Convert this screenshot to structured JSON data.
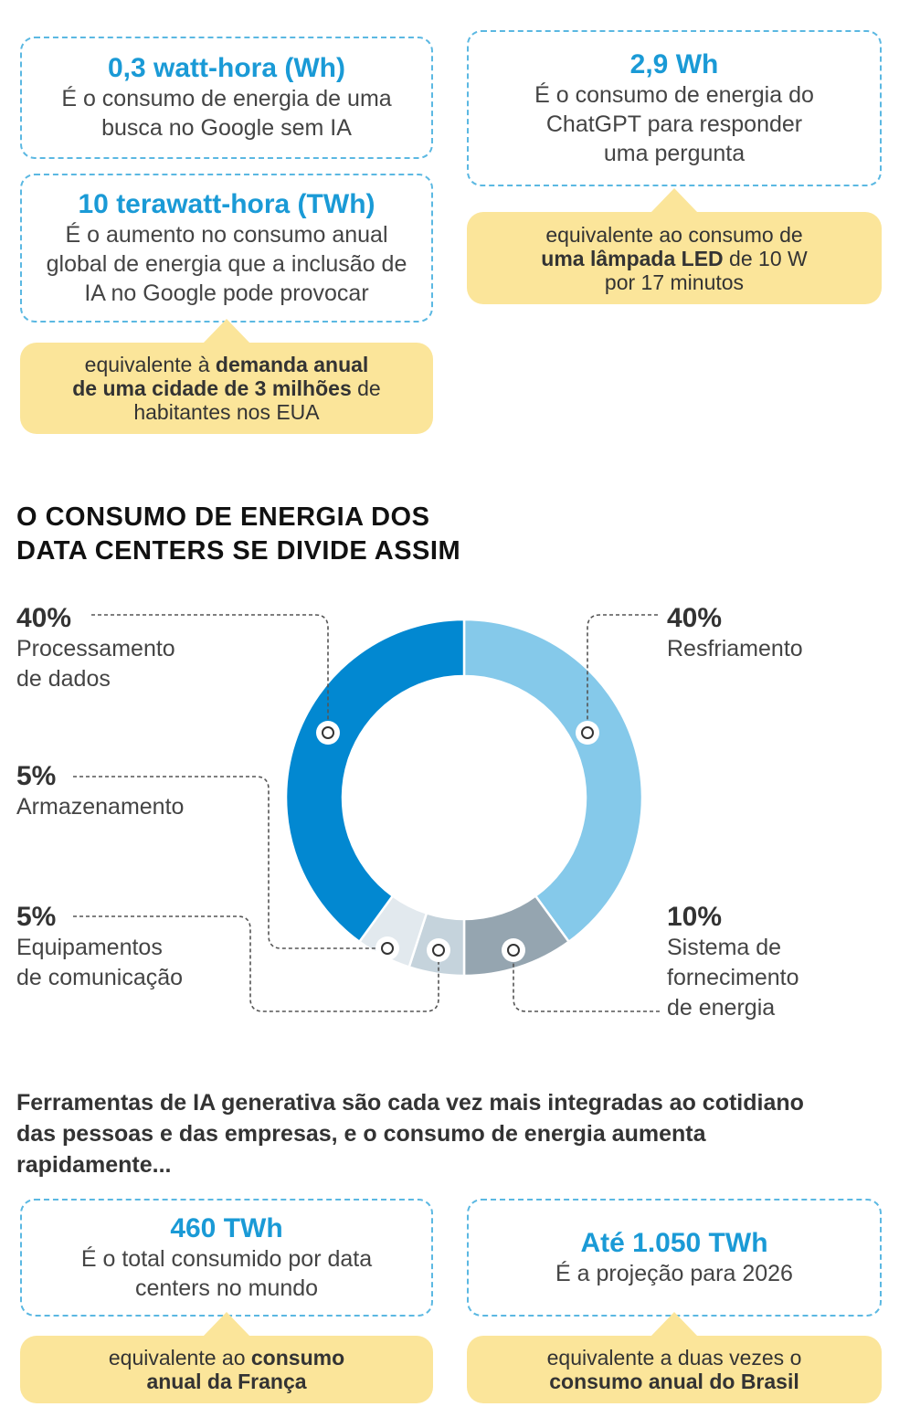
{
  "top_left_1": {
    "value": "0,3 watt-hora (Wh)",
    "desc": "É o consumo de energia de uma busca no Google sem IA"
  },
  "top_left_2": {
    "value": "10 terawatt-hora (TWh)",
    "desc": "É o aumento no consumo anual global de energia que a inclusão de IA no Google pode provocar",
    "callout": [
      {
        "text": "equivalente à ",
        "bold": false
      },
      {
        "text": "demanda anual de uma cidade de 3 milhões",
        "bold": true
      },
      {
        "text": " de habitantes nos EUA",
        "bold": false
      }
    ]
  },
  "top_right": {
    "value": "2,9 Wh",
    "desc": "É o consumo de energia do ChatGPT para responder uma pergunta",
    "callout": [
      {
        "text": "equivalente ao consumo de ",
        "bold": false
      },
      {
        "text": "uma lâmpada LED",
        "bold": true
      },
      {
        "text": " de 10 W por 17 minutos",
        "bold": false
      }
    ]
  },
  "heading": {
    "line1": "O CONSUMO DE ENERGIA DOS",
    "line2": "DATA CENTERS SE DIVIDE ASSIM"
  },
  "chart_data": {
    "type": "pie",
    "variant": "donut",
    "start": "top, clockwise",
    "slices": [
      {
        "label_line1": "Resfriamento",
        "label_line2": "",
        "label_line3": "",
        "pct_label": "40%",
        "value": 40,
        "color": "#85c9ea"
      },
      {
        "label_line1": "Sistema de",
        "label_line2": "fornecimento",
        "label_line3": "de energia",
        "pct_label": "10%",
        "value": 10,
        "color": "#95a5b0"
      },
      {
        "label_line1": "Equipamentos",
        "label_line2": "de comunicação",
        "label_line3": "",
        "pct_label": "5%",
        "value": 5,
        "color": "#c5d3dc"
      },
      {
        "label_line1": "Armazenamento",
        "label_line2": "",
        "label_line3": "",
        "pct_label": "5%",
        "value": 5,
        "color": "#e2e9ee"
      },
      {
        "label_line1": "Processamento",
        "label_line2": "de dados",
        "label_line3": "",
        "pct_label": "40%",
        "value": 40,
        "color": "#0288d1"
      }
    ]
  },
  "paragraph": "Ferramentas de IA generativa são cada vez mais integradas ao cotidiano das pessoas e das empresas, e o consumo de energia aumenta rapidamente...",
  "bottom_left": {
    "value": "460 TWh",
    "desc": "É o total consumido por data centers no mundo",
    "callout": [
      {
        "text": "equivalente ao ",
        "bold": false
      },
      {
        "text": "consumo anual da França",
        "bold": true
      }
    ]
  },
  "bottom_right": {
    "value": "Até 1.050 TWh",
    "desc": "É a projeção para 2026",
    "callout": [
      {
        "text": "equivalente a duas vezes o ",
        "bold": false
      },
      {
        "text": "consumo anual do Brasil",
        "bold": true
      }
    ]
  },
  "colors": {
    "accent": "#1a9ad6",
    "callout": "#fbe59a",
    "border": "#5bb8e2"
  }
}
